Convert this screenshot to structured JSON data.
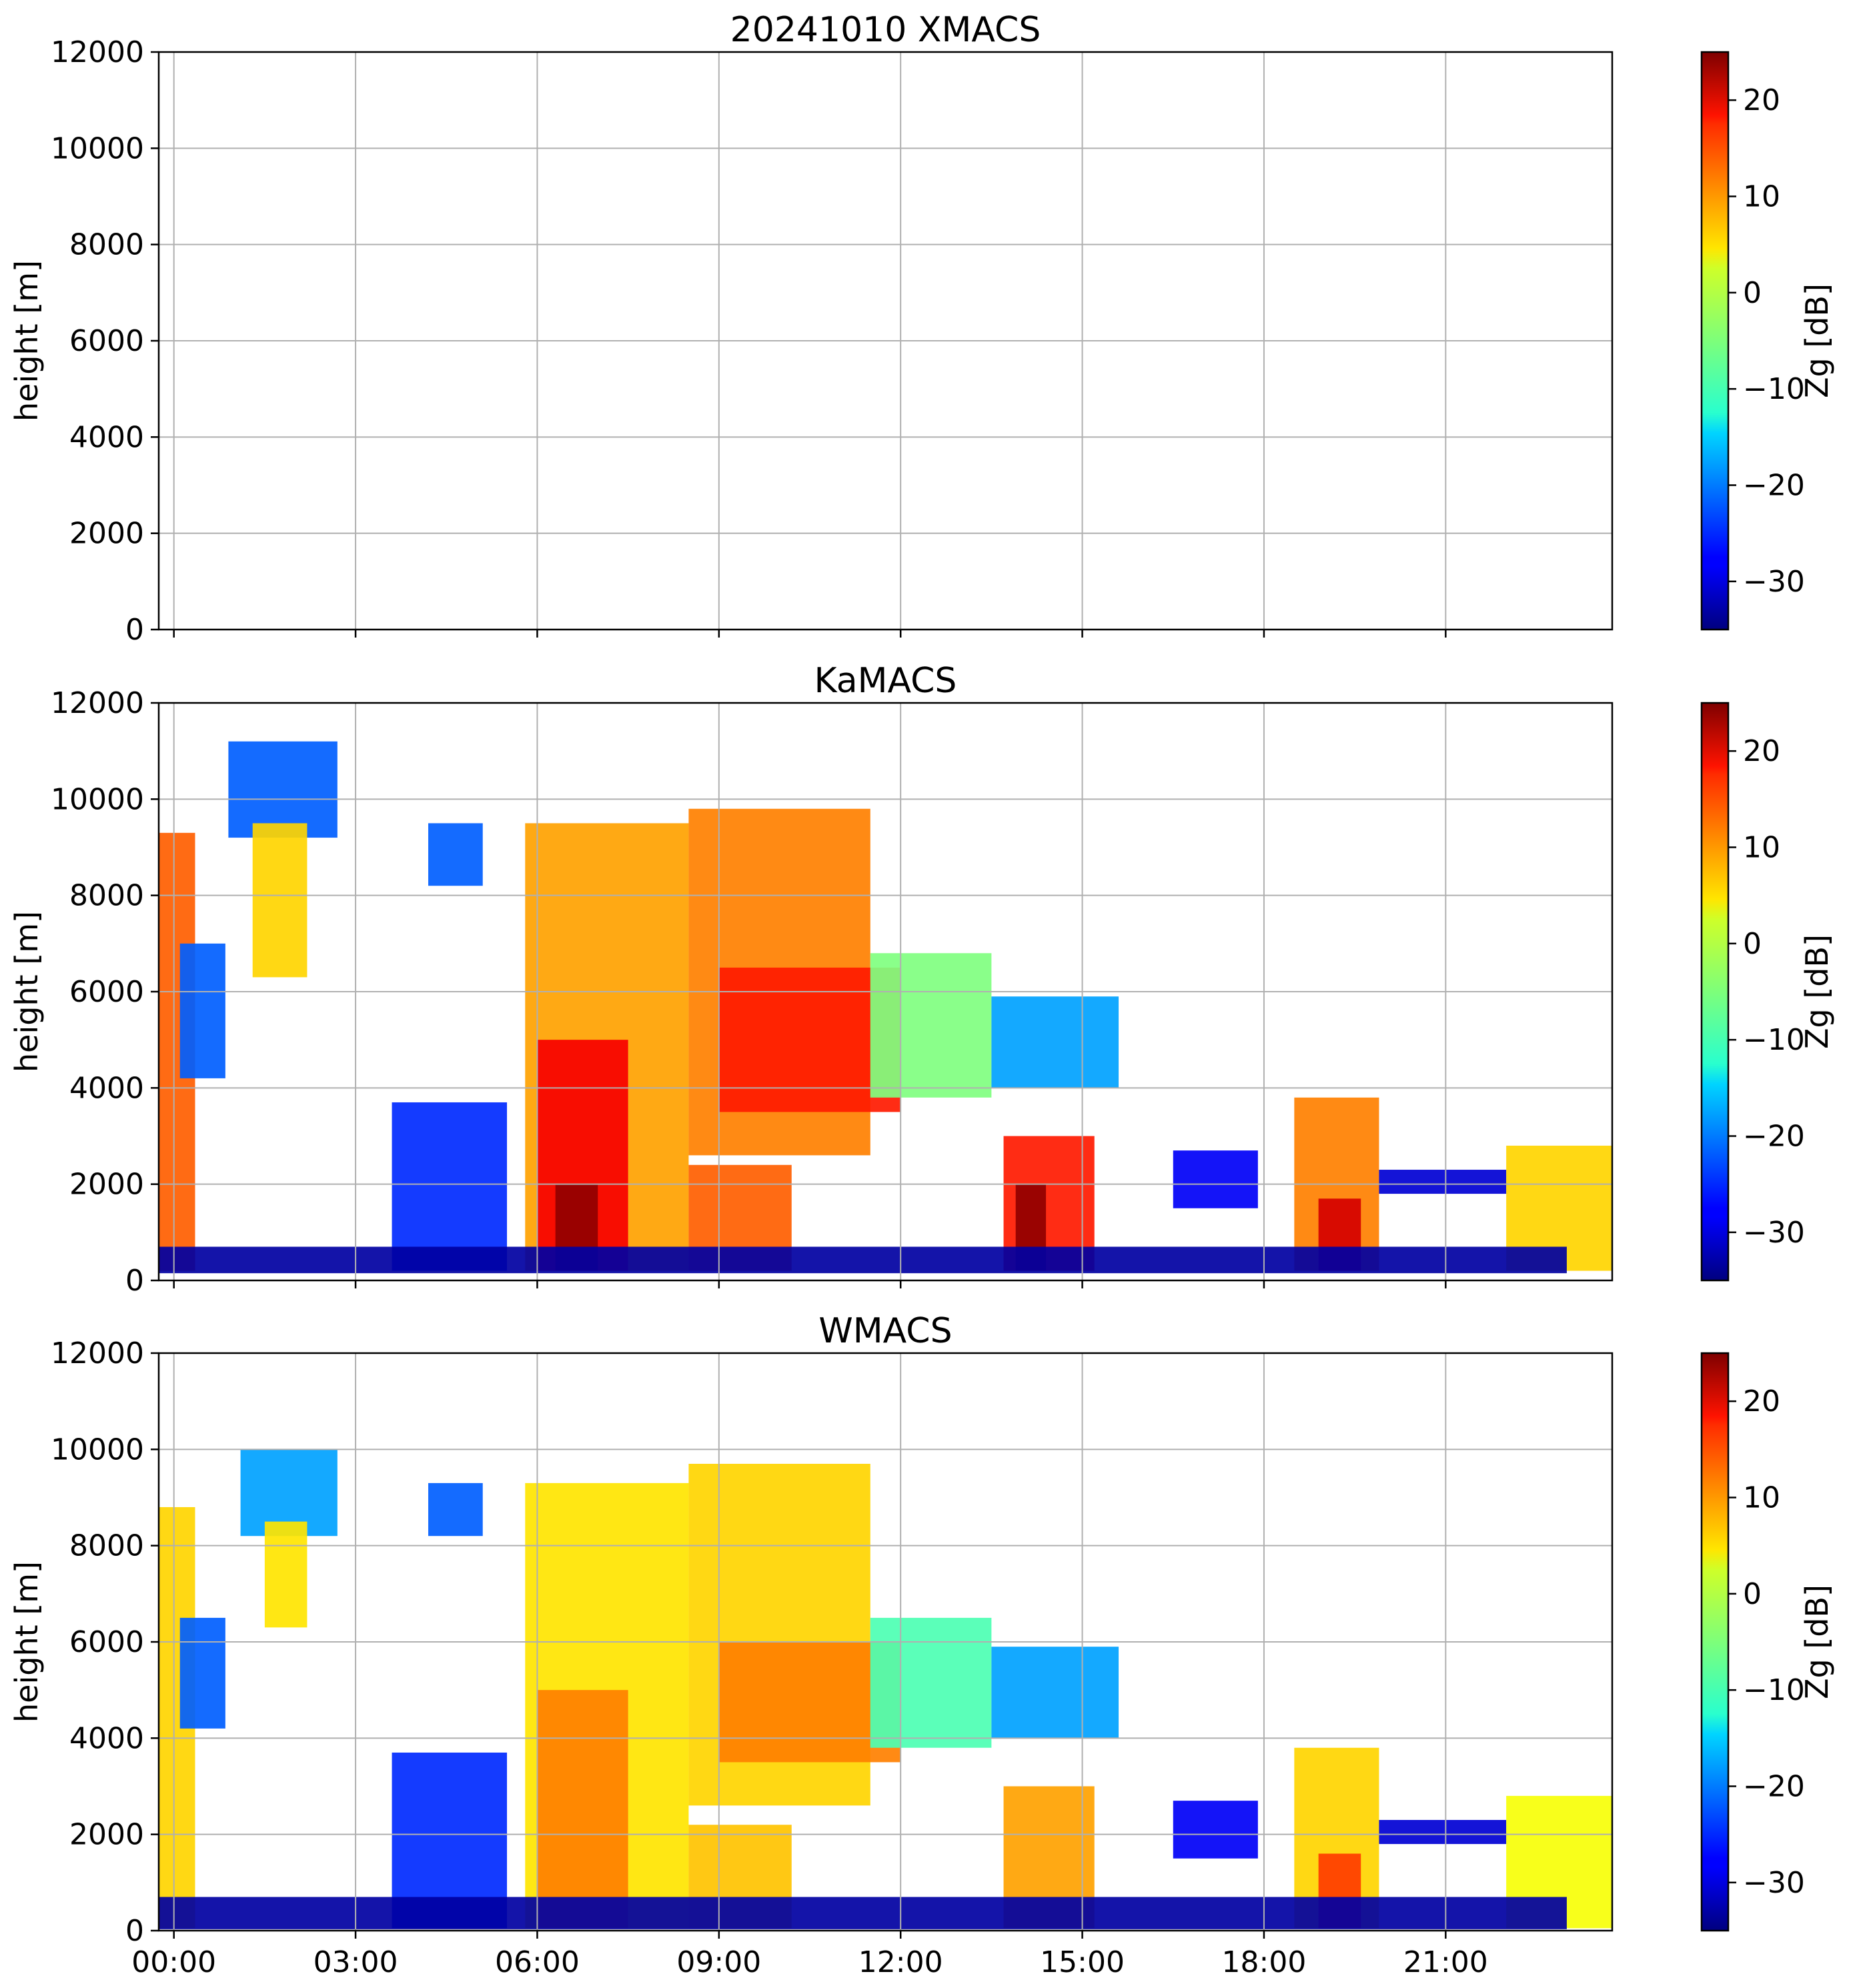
{
  "chart_data": [
    {
      "type": "heatmap",
      "title": "20241010 XMACS",
      "ylabel": "height [m]",
      "ylim": [
        0,
        12000
      ],
      "yticks": [
        "0",
        "2000",
        "4000",
        "6000",
        "8000",
        "10000",
        "12000"
      ],
      "xlim_hours": [
        -0.25,
        23.75
      ],
      "xticks": [
        "00:00",
        "03:00",
        "06:00",
        "09:00",
        "12:00",
        "15:00",
        "18:00",
        "21:00"
      ],
      "show_xticklabels": false,
      "grid": true,
      "colorbar": {
        "label": "Zg [dB]",
        "range": [
          -35,
          25
        ],
        "ticks": [
          "−30",
          "−20",
          "−10",
          "0",
          "10",
          "20"
        ],
        "colormap": "jet"
      },
      "echoes": []
    },
    {
      "type": "heatmap",
      "title": "KaMACS",
      "ylabel": "height [m]",
      "ylim": [
        0,
        12000
      ],
      "yticks": [
        "0",
        "2000",
        "4000",
        "6000",
        "8000",
        "10000",
        "12000"
      ],
      "xlim_hours": [
        -0.25,
        23.75
      ],
      "xticks": [
        "00:00",
        "03:00",
        "06:00",
        "09:00",
        "12:00",
        "15:00",
        "18:00",
        "21:00"
      ],
      "show_xticklabels": false,
      "grid": true,
      "colorbar": {
        "label": "Zg [dB]",
        "range": [
          -35,
          25
        ],
        "ticks": [
          "−30",
          "−20",
          "−10",
          "0",
          "10",
          "20"
        ],
        "colormap": "jet"
      },
      "echoes": [
        {
          "t0": -0.25,
          "t1": 0.35,
          "h0": 200,
          "h1": 9300,
          "z": 12
        },
        {
          "t0": 0.1,
          "t1": 0.85,
          "h0": 4200,
          "h1": 7000,
          "z": -22
        },
        {
          "t0": 0.9,
          "t1": 2.7,
          "h0": 9200,
          "h1": 11200,
          "z": -22
        },
        {
          "t0": 1.3,
          "t1": 2.2,
          "h0": 6300,
          "h1": 9500,
          "z": 5
        },
        {
          "t0": 4.2,
          "t1": 5.1,
          "h0": 8200,
          "h1": 9500,
          "z": -22
        },
        {
          "t0": 3.6,
          "t1": 5.5,
          "h0": 200,
          "h1": 3700,
          "z": -25
        },
        {
          "t0": 5.8,
          "t1": 8.5,
          "h0": 200,
          "h1": 9500,
          "z": 8
        },
        {
          "t0": 6.0,
          "t1": 7.5,
          "h0": 200,
          "h1": 5000,
          "z": 18
        },
        {
          "t0": 6.3,
          "t1": 7.0,
          "h0": 200,
          "h1": 2000,
          "z": 24
        },
        {
          "t0": 8.5,
          "t1": 11.5,
          "h0": 2600,
          "h1": 9800,
          "z": 10
        },
        {
          "t0": 9.0,
          "t1": 12.0,
          "h0": 3500,
          "h1": 6500,
          "z": 16
        },
        {
          "t0": 8.5,
          "t1": 10.2,
          "h0": 200,
          "h1": 2400,
          "z": 12
        },
        {
          "t0": 11.5,
          "t1": 13.5,
          "h0": 3800,
          "h1": 6800,
          "z": -5
        },
        {
          "t0": 13.5,
          "t1": 15.6,
          "h0": 4000,
          "h1": 5900,
          "z": -18
        },
        {
          "t0": 13.7,
          "t1": 15.2,
          "h0": 200,
          "h1": 3000,
          "z": 16
        },
        {
          "t0": 13.9,
          "t1": 14.4,
          "h0": 200,
          "h1": 2000,
          "z": 24
        },
        {
          "t0": 16.5,
          "t1": 17.9,
          "h0": 1500,
          "h1": 2700,
          "z": -28
        },
        {
          "t0": 18.5,
          "t1": 19.9,
          "h0": 200,
          "h1": 3800,
          "z": 10
        },
        {
          "t0": 18.9,
          "t1": 19.6,
          "h0": 200,
          "h1": 1700,
          "z": 20
        },
        {
          "t0": 19.9,
          "t1": 22.0,
          "h0": 1800,
          "h1": 2300,
          "z": -30
        },
        {
          "t0": 22.0,
          "t1": 23.75,
          "h0": 200,
          "h1": 2800,
          "z": 5
        },
        {
          "t0": -0.25,
          "t1": 23.0,
          "h0": 150,
          "h1": 700,
          "z": -33
        }
      ]
    },
    {
      "type": "heatmap",
      "title": "WMACS",
      "ylabel": "height [m]",
      "ylim": [
        0,
        12000
      ],
      "yticks": [
        "0",
        "2000",
        "4000",
        "6000",
        "8000",
        "10000",
        "12000"
      ],
      "xlim_hours": [
        -0.25,
        23.75
      ],
      "xticks": [
        "00:00",
        "03:00",
        "06:00",
        "09:00",
        "12:00",
        "15:00",
        "18:00",
        "21:00"
      ],
      "show_xticklabels": true,
      "grid": true,
      "colorbar": {
        "label": "Zg [dB]",
        "range": [
          -35,
          25
        ],
        "ticks": [
          "−30",
          "−20",
          "−10",
          "0",
          "10",
          "20"
        ],
        "colormap": "jet"
      },
      "echoes": [
        {
          "t0": -0.25,
          "t1": 0.35,
          "h0": 50,
          "h1": 8800,
          "z": 5
        },
        {
          "t0": 0.1,
          "t1": 0.85,
          "h0": 4200,
          "h1": 6500,
          "z": -22
        },
        {
          "t0": 1.1,
          "t1": 2.7,
          "h0": 8200,
          "h1": 10000,
          "z": -18
        },
        {
          "t0": 1.5,
          "t1": 2.2,
          "h0": 6300,
          "h1": 8500,
          "z": 4
        },
        {
          "t0": 4.2,
          "t1": 5.1,
          "h0": 8200,
          "h1": 9300,
          "z": -22
        },
        {
          "t0": 3.6,
          "t1": 5.5,
          "h0": 50,
          "h1": 3700,
          "z": -25
        },
        {
          "t0": 5.8,
          "t1": 8.5,
          "h0": 50,
          "h1": 9300,
          "z": 4
        },
        {
          "t0": 6.0,
          "t1": 7.5,
          "h0": 50,
          "h1": 5000,
          "z": 10
        },
        {
          "t0": 8.5,
          "t1": 11.5,
          "h0": 2600,
          "h1": 9700,
          "z": 5
        },
        {
          "t0": 9.0,
          "t1": 12.0,
          "h0": 3500,
          "h1": 6000,
          "z": 10
        },
        {
          "t0": 8.5,
          "t1": 10.2,
          "h0": 50,
          "h1": 2200,
          "z": 6
        },
        {
          "t0": 11.5,
          "t1": 13.5,
          "h0": 3800,
          "h1": 6500,
          "z": -8
        },
        {
          "t0": 13.5,
          "t1": 15.6,
          "h0": 4000,
          "h1": 5900,
          "z": -18
        },
        {
          "t0": 13.7,
          "t1": 15.2,
          "h0": 50,
          "h1": 3000,
          "z": 8
        },
        {
          "t0": 16.5,
          "t1": 17.9,
          "h0": 1500,
          "h1": 2700,
          "z": -28
        },
        {
          "t0": 18.5,
          "t1": 19.9,
          "h0": 50,
          "h1": 3800,
          "z": 5
        },
        {
          "t0": 18.9,
          "t1": 19.6,
          "h0": 50,
          "h1": 1600,
          "z": 14
        },
        {
          "t0": 19.9,
          "t1": 22.0,
          "h0": 1800,
          "h1": 2300,
          "z": -30
        },
        {
          "t0": 22.0,
          "t1": 23.75,
          "h0": 50,
          "h1": 2800,
          "z": 2
        },
        {
          "t0": -0.25,
          "t1": 23.0,
          "h0": 30,
          "h1": 700,
          "z": -33
        }
      ]
    }
  ]
}
